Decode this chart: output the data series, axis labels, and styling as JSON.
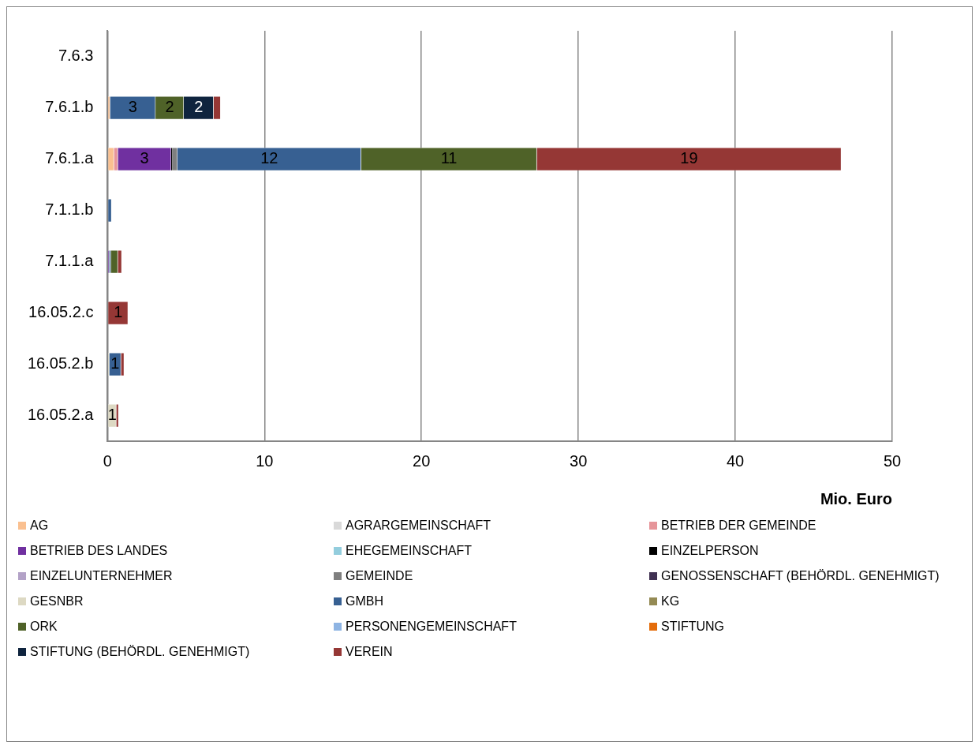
{
  "chart_data": {
    "type": "bar",
    "orientation": "horizontal",
    "stacked": true,
    "xlabel": "Mio. Euro",
    "categories": [
      "7.6.3",
      "7.6.1.b",
      "7.6.1.a",
      "7.1.1.b",
      "7.1.1.a",
      "16.05.2.c",
      "16.05.2.b",
      "16.05.2.a"
    ],
    "xlim": [
      0,
      50
    ],
    "xticks": [
      0,
      10,
      20,
      30,
      40,
      50
    ],
    "grid": "x",
    "legend": "bottom",
    "series": [
      {
        "name": "AG",
        "color": "#fac090",
        "values": [
          null,
          0.15,
          0.4,
          null,
          null,
          null,
          null,
          null
        ]
      },
      {
        "name": "AGRARGEMEINSCHAFT",
        "color": "#d9d9d9",
        "values": [
          null,
          null,
          null,
          null,
          null,
          null,
          null,
          null
        ]
      },
      {
        "name": "BETRIEB DER GEMEINDE",
        "color": "#e6959a",
        "values": [
          null,
          null,
          0.25,
          null,
          null,
          null,
          null,
          null
        ]
      },
      {
        "name": "BETRIEB DES LANDES",
        "color": "#7030a0",
        "values": [
          null,
          null,
          3.4,
          null,
          0.1,
          null,
          null,
          null
        ],
        "value_labels": [
          null,
          null,
          "3",
          null,
          null,
          null,
          null,
          null
        ]
      },
      {
        "name": "EHEGEMEINSCHAFT",
        "color": "#93cddd",
        "values": [
          null,
          null,
          null,
          null,
          null,
          null,
          null,
          null
        ]
      },
      {
        "name": "EINZELPERSON",
        "color": "#000000",
        "values": [
          null,
          null,
          0.1,
          null,
          null,
          null,
          null,
          null
        ]
      },
      {
        "name": "EINZELUNTERNEHMER",
        "color": "#b3a2c7",
        "values": [
          null,
          null,
          null,
          null,
          null,
          null,
          null,
          null
        ]
      },
      {
        "name": "GEMEINDE",
        "color": "#7f7f7f",
        "values": [
          null,
          null,
          0.3,
          null,
          null,
          null,
          null,
          null
        ]
      },
      {
        "name": "GENOSSENSCHAFT (BEHÖRDL. GENEHMIGT)",
        "color": "#403152",
        "values": [
          null,
          null,
          null,
          null,
          null,
          null,
          null,
          null
        ]
      },
      {
        "name": "GESNBR",
        "color": "#ddd9c3",
        "values": [
          null,
          null,
          null,
          null,
          null,
          null,
          0.1,
          0.55
        ],
        "value_labels": [
          null,
          null,
          null,
          null,
          null,
          null,
          null,
          "1"
        ]
      },
      {
        "name": "GMBH",
        "color": "#376092",
        "values": [
          null,
          2.9,
          11.7,
          0.25,
          0.1,
          null,
          0.75,
          null
        ],
        "value_labels": [
          null,
          "3",
          "12",
          null,
          null,
          null,
          "1",
          null
        ]
      },
      {
        "name": "KG",
        "color": "#948a54",
        "values": [
          null,
          null,
          null,
          null,
          null,
          null,
          null,
          null
        ]
      },
      {
        "name": "ORK",
        "color": "#4f6228",
        "values": [
          null,
          1.8,
          11.2,
          null,
          0.45,
          null,
          null,
          null
        ],
        "value_labels": [
          null,
          "2",
          "11",
          null,
          null,
          null,
          null,
          null
        ]
      },
      {
        "name": "PERSONENGEMEINSCHAFT",
        "color": "#8eb4e3",
        "values": [
          null,
          null,
          null,
          null,
          null,
          null,
          null,
          null
        ]
      },
      {
        "name": "STIFTUNG",
        "color": "#e46c0a",
        "values": [
          null,
          null,
          null,
          null,
          null,
          null,
          null,
          null
        ]
      },
      {
        "name": "STIFTUNG (BEHÖRDL. GENEHMIGT)",
        "color": "#0f243e",
        "values": [
          null,
          1.9,
          null,
          null,
          null,
          null,
          null,
          null
        ],
        "value_labels": [
          null,
          "2",
          null,
          null,
          null,
          null,
          null,
          null
        ]
      },
      {
        "name": "VEREIN",
        "color": "#953735",
        "values": [
          null,
          0.45,
          19.4,
          null,
          0.25,
          1.3,
          0.2,
          0.15
        ],
        "value_labels": [
          null,
          null,
          "19",
          null,
          null,
          "1",
          null,
          null
        ]
      }
    ]
  }
}
